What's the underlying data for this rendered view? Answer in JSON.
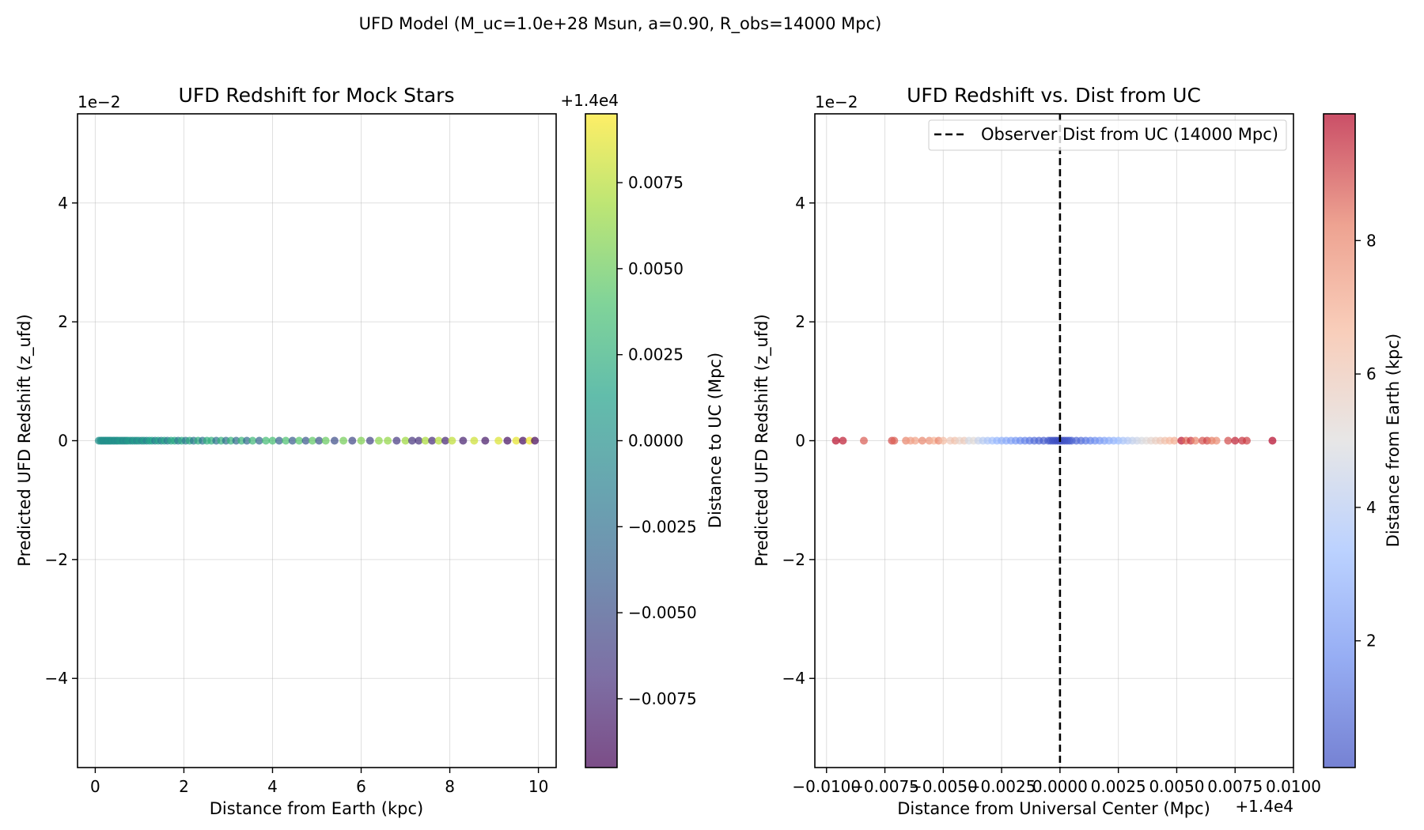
{
  "figure": {
    "suptitle": "UFD Model (M_uc=1.0e+28 Msun, a=0.90, R_obs=14000 Mpc)"
  },
  "panels": {
    "left": {
      "title": "UFD Redshift for Mock Stars",
      "xlabel": "Distance from Earth (kpc)",
      "ylabel": "Predicted UFD Redshift (z_ufd)",
      "y_offset_label": "1e−2",
      "colorbar": {
        "label": "Distance to UC (Mpc)",
        "offset_label": "+1.4e4",
        "colormap": "viridis",
        "range": [
          -0.0095,
          0.0095
        ],
        "ticks": [
          "−0.0075",
          "−0.0050",
          "−0.0025",
          "0.0000",
          "0.0025",
          "0.0050",
          "0.0075"
        ]
      }
    },
    "right": {
      "title": "UFD Redshift vs. Dist from UC",
      "xlabel": "Distance from Universal Center (Mpc)",
      "ylabel": "Predicted UFD Redshift (z_ufd)",
      "y_offset_label": "1e−2",
      "x_offset_label": "+1.4e4",
      "legend_label": "Observer Dist from UC (14000 Mpc)",
      "colorbar": {
        "label": "Distance from Earth (kpc)",
        "colormap": "coolwarm",
        "range": [
          0.1,
          9.9
        ],
        "ticks": [
          "2",
          "4",
          "6",
          "8"
        ]
      }
    }
  },
  "chart_data": [
    {
      "type": "scatter",
      "title": "UFD Redshift for Mock Stars",
      "xlabel": "Distance from Earth (kpc)",
      "ylabel": "Predicted UFD Redshift (z_ufd)",
      "xlim": [
        -0.4,
        10.4
      ],
      "ylim": [
        -0.055,
        0.055
      ],
      "y_scale_note": "1e-2",
      "x_ticks": [
        "0",
        "2",
        "4",
        "6",
        "8",
        "10"
      ],
      "y_ticks": [
        "−4",
        "−2",
        "0",
        "2",
        "4"
      ],
      "grid": true,
      "color_by": "Distance to UC (Mpc), offset +1.4e4, range -0.0095 to 0.0095",
      "x": [
        0.08,
        0.12,
        0.15,
        0.18,
        0.21,
        0.24,
        0.27,
        0.3,
        0.33,
        0.36,
        0.4,
        0.43,
        0.47,
        0.5,
        0.54,
        0.58,
        0.62,
        0.66,
        0.7,
        0.74,
        0.79,
        0.84,
        0.89,
        0.94,
        0.99,
        1.05,
        1.1,
        1.16,
        1.22,
        1.28,
        1.35,
        1.42,
        1.49,
        1.56,
        1.63,
        1.71,
        1.79,
        1.87,
        1.95,
        2.04,
        2.13,
        2.22,
        2.32,
        2.42,
        2.52,
        2.62,
        2.73,
        2.84,
        2.95,
        3.06,
        3.18,
        3.3,
        3.42,
        3.55,
        3.7,
        3.85,
        4.0,
        4.15,
        4.3,
        4.45,
        4.6,
        4.75,
        4.9,
        5.05,
        5.2,
        5.4,
        5.6,
        5.8,
        6.0,
        6.2,
        6.4,
        6.6,
        6.8,
        7.0,
        7.15,
        7.3,
        7.45,
        7.6,
        7.75,
        7.9,
        8.05,
        8.3,
        8.55,
        8.8,
        9.1,
        9.3,
        9.5,
        9.65,
        9.8,
        9.92
      ],
      "y": [
        0,
        0,
        0,
        0,
        0,
        0,
        0,
        0,
        0,
        0,
        0,
        0,
        0,
        0,
        0,
        0,
        0,
        0,
        0,
        0,
        0,
        0,
        0,
        0,
        0,
        0,
        0,
        0,
        0,
        0,
        0,
        0,
        0,
        0,
        0,
        0,
        0,
        0,
        0,
        0,
        0,
        0,
        0,
        0,
        0,
        0,
        0,
        0,
        0,
        0,
        0,
        0,
        0,
        0,
        0,
        0,
        0,
        0,
        0,
        0,
        0,
        0,
        0,
        0,
        0,
        0,
        0,
        0,
        0,
        0,
        0,
        0,
        0,
        0,
        0,
        0,
        0,
        0,
        0,
        0,
        0,
        0,
        0,
        0,
        0,
        0,
        0,
        0,
        0,
        0
      ],
      "color_values": [
        0.0001,
        -0.0001,
        0.0002,
        -0.0002,
        0.0001,
        0.0,
        -0.0003,
        0.0003,
        0.0002,
        -0.0002,
        0.0004,
        -0.0004,
        0.0003,
        -0.0005,
        0.0005,
        0.0006,
        -0.0006,
        0.0004,
        -0.0007,
        0.0007,
        0.0008,
        -0.0008,
        0.0009,
        -0.0009,
        0.001,
        -0.001,
        0.0011,
        -0.0012,
        0.0012,
        0.0013,
        -0.0014,
        0.0014,
        -0.0015,
        0.0016,
        -0.0016,
        0.0017,
        0.0018,
        -0.0018,
        0.0019,
        -0.002,
        0.0021,
        -0.0021,
        0.0022,
        -0.0023,
        0.0024,
        0.0025,
        -0.0025,
        0.0026,
        -0.0027,
        0.0028,
        -0.0029,
        0.003,
        -0.0031,
        0.0032,
        -0.0034,
        0.0035,
        0.0037,
        -0.0038,
        0.004,
        -0.0041,
        0.0043,
        -0.0044,
        0.0046,
        -0.0047,
        0.0049,
        -0.0051,
        0.0053,
        -0.0055,
        0.0057,
        -0.0059,
        0.0061,
        0.0063,
        -0.0065,
        0.0067,
        -0.0068,
        -0.007,
        0.0071,
        -0.0073,
        0.0074,
        -0.0076,
        0.0077,
        -0.0079,
        0.0081,
        -0.0083,
        0.0085,
        -0.0087,
        0.0088,
        -0.009,
        0.0091,
        -0.0093
      ]
    },
    {
      "type": "scatter",
      "title": "UFD Redshift vs. Dist from UC",
      "xlabel": "Distance from Universal Center (Mpc)",
      "ylabel": "Predicted UFD Redshift (z_ufd)",
      "x_offset": "+1.4e4",
      "xlim": [
        -0.0105,
        0.01
      ],
      "ylim": [
        -0.055,
        0.055
      ],
      "y_scale_note": "1e-2",
      "x_ticks": [
        "−0.0100",
        "−0.0075",
        "−0.0050",
        "−0.0025",
        "0.0000",
        "0.0025",
        "0.0050",
        "0.0075",
        "0.0100"
      ],
      "y_ticks": [
        "−4",
        "−2",
        "0",
        "2",
        "4"
      ],
      "grid": true,
      "legend": "top-right",
      "vline": {
        "x": 0.0,
        "label": "Observer Dist from UC (14000 Mpc)",
        "style": "dashed"
      },
      "color_by": "Distance from Earth (kpc), range 0.1 to 9.9",
      "x": [
        -0.0096,
        -0.0093,
        -0.0084,
        -0.0072,
        -0.0071,
        -0.0066,
        -0.0064,
        -0.0062,
        -0.0059,
        -0.0056,
        -0.0054,
        -0.0052,
        -0.005,
        -0.0047,
        -0.0045,
        -0.0043,
        -0.0041,
        -0.0039,
        -0.0037,
        -0.0035,
        -0.0033,
        -0.0031,
        -0.0029,
        -0.0027,
        -0.0025,
        -0.0023,
        -0.0021,
        -0.0019,
        -0.0017,
        -0.0015,
        -0.0013,
        -0.0011,
        -0.0009,
        -0.0007,
        -0.0005,
        -0.0004,
        -0.0003,
        -0.0002,
        -0.0001,
        0.0,
        0.0001,
        0.0002,
        0.0003,
        0.0004,
        0.0005,
        0.0007,
        0.0009,
        0.0011,
        0.0013,
        0.0015,
        0.0017,
        0.0019,
        0.0021,
        0.0023,
        0.0025,
        0.0027,
        0.0029,
        0.0031,
        0.0033,
        0.0035,
        0.0037,
        0.0039,
        0.0041,
        0.0043,
        0.0045,
        0.0047,
        0.0049,
        0.0052,
        0.0054,
        0.0056,
        0.0058,
        0.0061,
        0.0063,
        0.0065,
        0.0067,
        0.0072,
        0.0075,
        0.0078,
        0.008,
        0.0091
      ],
      "y": [
        0,
        0,
        0,
        0,
        0,
        0,
        0,
        0,
        0,
        0,
        0,
        0,
        0,
        0,
        0,
        0,
        0,
        0,
        0,
        0,
        0,
        0,
        0,
        0,
        0,
        0,
        0,
        0,
        0,
        0,
        0,
        0,
        0,
        0,
        0,
        0,
        0,
        0,
        0,
        0,
        0,
        0,
        0,
        0,
        0,
        0,
        0,
        0,
        0,
        0,
        0,
        0,
        0,
        0,
        0,
        0,
        0,
        0,
        0,
        0,
        0,
        0,
        0,
        0,
        0,
        0,
        0,
        0,
        0,
        0,
        0,
        0,
        0,
        0,
        0,
        0,
        0,
        0,
        0,
        0
      ],
      "color_values": [
        9.8,
        9.6,
        8.7,
        8.9,
        8.6,
        8.0,
        7.4,
        7.2,
        8.0,
        7.7,
        6.8,
        7.9,
        6.5,
        6.0,
        6.3,
        5.5,
        5.9,
        4.7,
        5.2,
        4.4,
        4.0,
        3.7,
        3.5,
        3.1,
        2.9,
        2.7,
        2.5,
        2.2,
        1.9,
        1.6,
        1.3,
        1.0,
        0.8,
        0.6,
        0.5,
        0.4,
        0.3,
        0.2,
        0.1,
        0.1,
        0.1,
        0.2,
        0.3,
        0.4,
        0.6,
        0.8,
        1.0,
        1.3,
        1.6,
        1.9,
        2.2,
        2.5,
        2.8,
        3.0,
        3.3,
        3.6,
        3.9,
        4.2,
        4.5,
        4.8,
        5.1,
        5.4,
        5.7,
        6.0,
        6.3,
        6.6,
        6.9,
        9.7,
        8.5,
        9.2,
        7.9,
        8.8,
        9.0,
        8.2,
        7.8,
        8.9,
        9.5,
        9.3,
        9.1,
        9.9
      ]
    }
  ]
}
